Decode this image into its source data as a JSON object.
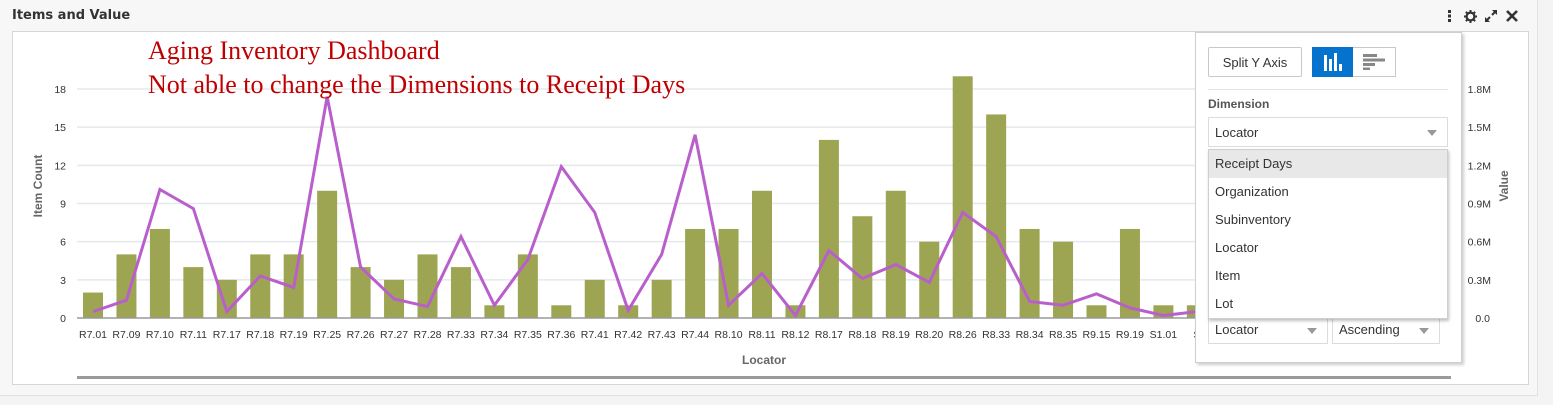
{
  "panel": {
    "title": "Items and Value",
    "tools": [
      "more-icon",
      "gear-icon",
      "expand-icon",
      "close-icon"
    ]
  },
  "annotation": {
    "line1": "Aging Inventory Dashboard",
    "line2": "Not able to change the Dimensions to Receipt Days"
  },
  "colors": {
    "bar": "#9ea552",
    "line": "#b95fcb",
    "annotation": "#c00000",
    "toggle_active": "#0572ce",
    "grid": "#e5e9ee"
  },
  "popup": {
    "split_y_axis_label": "Split Y Axis",
    "chart_type_toggle": [
      "bar-chart-icon",
      "horizontal-bar-chart-icon"
    ],
    "active_chart_type": "bar-chart-icon",
    "dimension_label": "Dimension",
    "dimension_value": "Locator",
    "dimension_options": [
      "Receipt Days",
      "Organization",
      "Subinventory",
      "Locator",
      "Item",
      "Lot"
    ],
    "highlighted_option": "Receipt Days",
    "sort_by_value": "Locator",
    "sort_order_value": "Ascending"
  },
  "chart_data": {
    "type": "bar",
    "title": "Items and Value",
    "xlabel": "Locator",
    "ylabel": "Item Count",
    "y2label": "Value",
    "ylim": [
      0,
      18
    ],
    "y2lim": [
      0,
      1.8
    ],
    "yticks": [
      "0",
      "3",
      "6",
      "9",
      "12",
      "15",
      "18"
    ],
    "y2ticks": [
      "0.0",
      "0.3M",
      "0.6M",
      "0.9M",
      "1.2M",
      "1.5M",
      "1.8M"
    ],
    "grid": true,
    "legend": "none",
    "categories": [
      "R7.01",
      "R7.09",
      "R7.10",
      "R7.11",
      "R7.17",
      "R7.18",
      "R7.19",
      "R7.25",
      "R7.26",
      "R7.27",
      "R7.28",
      "R7.33",
      "R7.34",
      "R7.35",
      "R7.36",
      "R7.41",
      "R7.42",
      "R7.43",
      "R7.44",
      "R8.10",
      "R8.11",
      "R8.12",
      "R8.17",
      "R8.18",
      "R8.19",
      "R8.20",
      "R8.26",
      "R8.33",
      "R8.34",
      "R8.35",
      "R9.15",
      "R9.19",
      "S1.01",
      "S"
    ],
    "series": [
      {
        "name": "Item Count",
        "type": "bar",
        "axis": "left",
        "values": [
          2,
          5,
          7,
          4,
          3,
          5,
          5,
          10,
          4,
          3,
          5,
          4,
          1,
          5,
          1,
          3,
          1,
          3,
          7,
          7,
          10,
          1,
          14,
          8,
          10,
          6,
          19,
          16,
          7,
          6,
          1,
          7,
          1,
          1
        ]
      },
      {
        "name": "Value",
        "type": "line",
        "axis": "right",
        "unit": "M",
        "values": [
          0.05,
          0.14,
          1.01,
          0.86,
          0.05,
          0.33,
          0.24,
          1.74,
          0.4,
          0.15,
          0.09,
          0.64,
          0.1,
          0.46,
          1.19,
          0.83,
          0.06,
          0.5,
          1.44,
          0.1,
          0.35,
          0.02,
          0.53,
          0.31,
          0.42,
          0.28,
          0.83,
          0.64,
          0.13,
          0.1,
          0.19,
          0.08,
          0.02,
          0.05
        ]
      }
    ]
  }
}
